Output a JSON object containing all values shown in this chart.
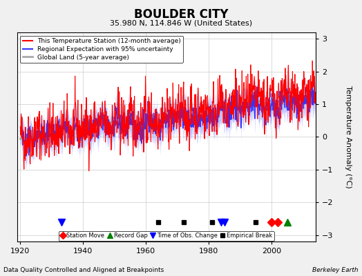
{
  "title": "BOULDER CITY",
  "subtitle": "35.980 N, 114.846 W (United States)",
  "ylabel": "Temperature Anomaly (°C)",
  "xlabel_note": "Data Quality Controlled and Aligned at Breakpoints",
  "credit": "Berkeley Earth",
  "ylim": [
    -3.2,
    3.2
  ],
  "xlim": [
    1919,
    2014
  ],
  "yticks": [
    -3,
    -2,
    -1,
    0,
    1,
    2,
    3
  ],
  "xticks": [
    1920,
    1940,
    1960,
    1980,
    2000
  ],
  "bg_color": "#f0f0f0",
  "plot_bg_color": "#ffffff",
  "grid_color": "#cccccc",
  "station_color": "#ff0000",
  "regional_color": "#3333ff",
  "global_color": "#aaaaaa",
  "uncertainty_alpha": 0.3,
  "markers": {
    "station_move": {
      "times": [
        2000,
        2002
      ],
      "color": "red",
      "marker": "D"
    },
    "record_gap": {
      "times": [
        2005
      ],
      "color": "green",
      "marker": "^"
    },
    "time_obs_change": {
      "times": [
        1933,
        1984,
        1985
      ],
      "color": "blue",
      "marker": "v"
    },
    "empirical_break": {
      "times": [
        1964,
        1972,
        1981,
        1995
      ],
      "color": "black",
      "marker": "s"
    }
  },
  "legend_entries": [
    {
      "label": "This Temperature Station (12-month average)",
      "color": "#ff0000",
      "lw": 1.5
    },
    {
      "label": "Regional Expectation with 95% uncertainty",
      "color": "#3333ff",
      "lw": 1.5
    },
    {
      "label": "Global Land (5-year average)",
      "color": "#aaaaaa",
      "lw": 2
    }
  ]
}
